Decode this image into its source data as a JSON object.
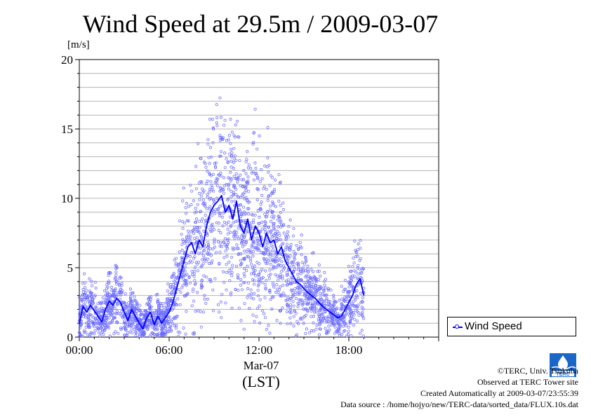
{
  "chart_data": {
    "type": "line",
    "title": "Wind Speed at 29.5m / 2009-03-07",
    "ylabel": "[m/s]",
    "xlabel": "(LST)",
    "x_date_label": "Mar-07",
    "xlim": [
      0,
      24
    ],
    "ylim": [
      0,
      20
    ],
    "y_major_ticks": [
      0,
      5,
      10,
      15,
      20
    ],
    "y_minor_step": 1,
    "x_ticks": [
      {
        "value": 0,
        "label": "00:00"
      },
      {
        "value": 6,
        "label": "06:00"
      },
      {
        "value": 12,
        "label": "12:00"
      },
      {
        "value": 18,
        "label": "18:00"
      }
    ],
    "grid": true,
    "legend": {
      "position": "bottom-right-outside",
      "entries": [
        "Wind Speed"
      ]
    },
    "series": [
      {
        "name": "Wind Speed",
        "color": "#0000ff",
        "x": [
          0.0,
          0.25,
          0.5,
          0.75,
          1.0,
          1.25,
          1.5,
          1.75,
          2.0,
          2.25,
          2.5,
          2.75,
          3.0,
          3.25,
          3.5,
          3.75,
          4.0,
          4.25,
          4.5,
          4.75,
          5.0,
          5.25,
          5.5,
          5.75,
          6.0,
          6.25,
          6.5,
          6.75,
          7.0,
          7.25,
          7.5,
          7.75,
          8.0,
          8.25,
          8.5,
          8.75,
          9.0,
          9.25,
          9.5,
          9.75,
          10.0,
          10.25,
          10.5,
          10.75,
          11.0,
          11.25,
          11.5,
          11.75,
          12.0,
          12.25,
          12.5,
          12.75,
          13.0,
          13.25,
          13.5,
          13.75,
          14.0,
          14.25,
          14.5,
          14.75,
          15.0,
          15.25,
          15.5,
          15.75,
          16.0,
          16.25,
          16.5,
          16.75,
          17.0,
          17.25,
          17.5,
          17.75,
          18.0,
          18.25,
          18.5,
          18.75,
          19.0
        ],
        "values": [
          1.0,
          2.2,
          1.8,
          2.3,
          1.9,
          1.5,
          1.1,
          2.0,
          2.6,
          2.3,
          2.8,
          2.5,
          1.8,
          1.2,
          2.0,
          1.5,
          1.0,
          0.6,
          1.4,
          1.8,
          0.9,
          1.5,
          1.0,
          1.4,
          1.8,
          2.5,
          3.5,
          4.5,
          5.5,
          6.5,
          6.8,
          6.0,
          7.0,
          6.5,
          8.0,
          9.0,
          9.5,
          9.8,
          10.2,
          9.0,
          9.5,
          8.5,
          9.8,
          8.0,
          7.5,
          8.5,
          7.0,
          8.0,
          7.5,
          6.5,
          7.5,
          6.8,
          7.0,
          6.0,
          6.5,
          5.5,
          5.0,
          4.5,
          4.0,
          3.8,
          3.5,
          3.2,
          3.0,
          2.8,
          2.5,
          2.2,
          2.0,
          1.8,
          1.6,
          1.4,
          1.5,
          2.0,
          2.5,
          3.0,
          3.8,
          4.2,
          3.0
        ]
      }
    ]
  },
  "credits": {
    "copyright": "©TERC, Univ. Tsukuba",
    "observed": "Observed at TERC Tower site",
    "created": "Created Automatically at 2009-03-07/23:55:39",
    "source": "Data source : /home/hojyo/new/TERC-data/sorted_data/FLUX.10s.dat"
  },
  "logo": {
    "text": "TERC",
    "icon": "terc-logo-icon"
  }
}
